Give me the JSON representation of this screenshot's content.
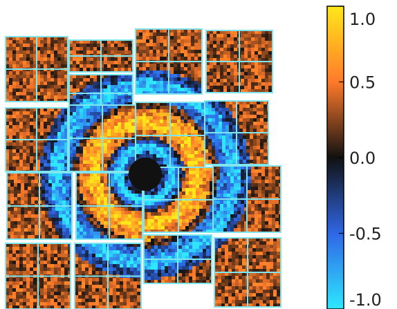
{
  "chart_data": {
    "type": "heatmap",
    "title": "",
    "xlabel": "",
    "ylabel": "",
    "colorbar": {
      "range": [
        -1.0,
        1.0
      ],
      "ticks": [
        1.0,
        0.5,
        0.0,
        -0.5,
        -1.0
      ],
      "tick_labels": [
        "1.0",
        "0.5",
        "0.0",
        "-0.5",
        "-1.0"
      ],
      "colormap": "cyan-blue-black-red-yellow"
    },
    "colors": {
      "panel_border": "#7fe6f0",
      "cmap_neg_end": "#2ee8ff",
      "cmap_neg_mid": "#2f66e6",
      "cmap_center": "#111111",
      "cmap_pos_mid": "#ff7a2a",
      "cmap_pos_end": "#ffe81a"
    },
    "pattern": "concentric rings around central beam-stop: negative inner halo, positive outer ring, weakly positive noisy background"
  }
}
